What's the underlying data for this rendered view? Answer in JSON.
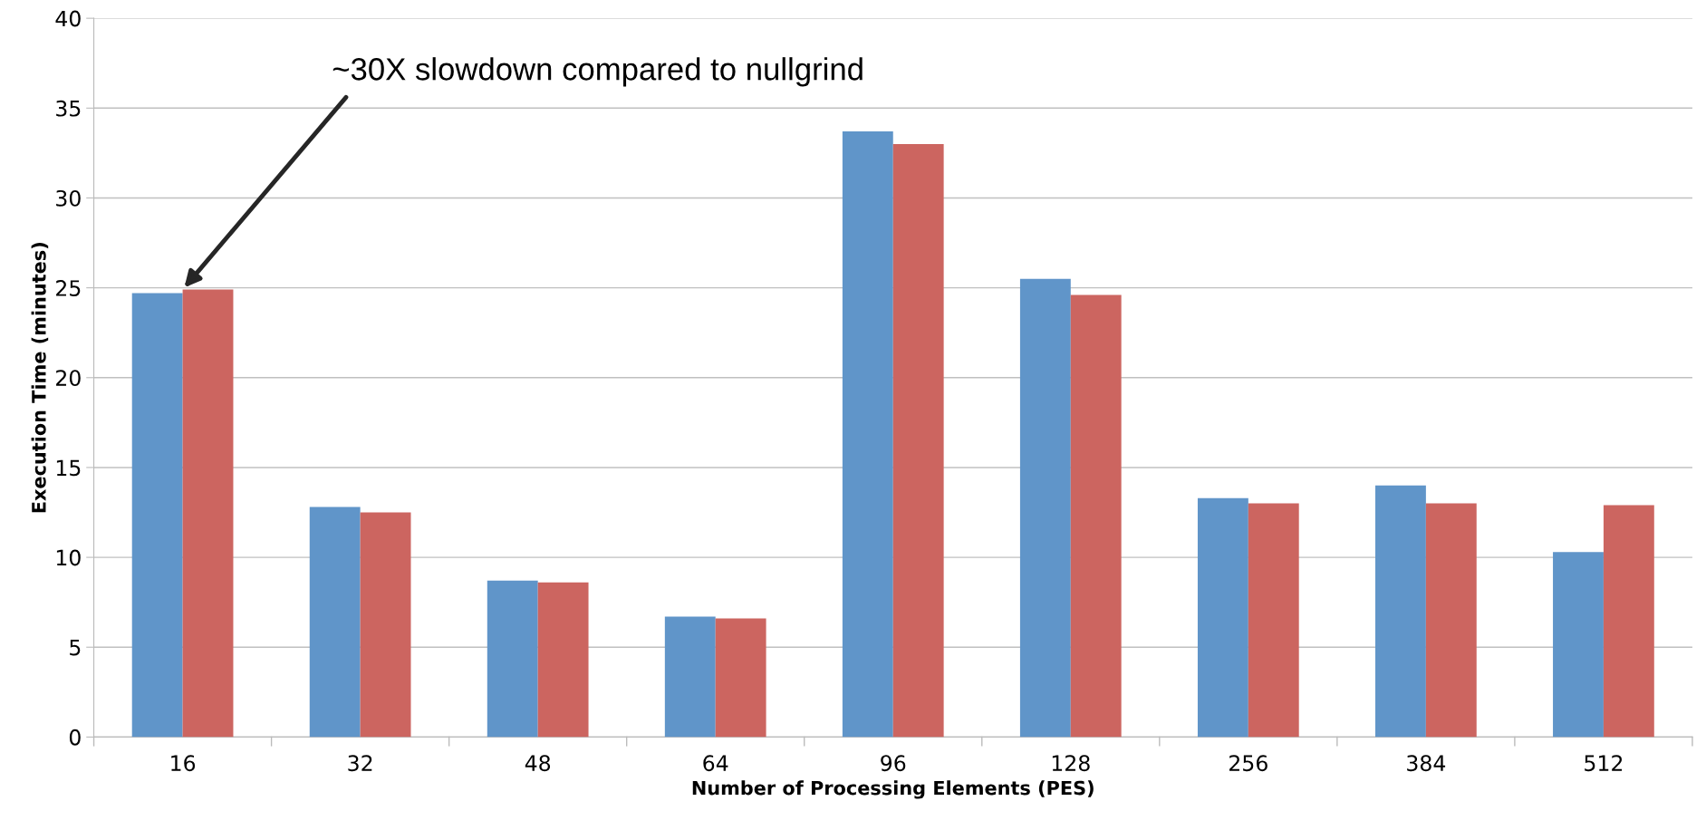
{
  "chart_data": {
    "type": "bar",
    "xlabel": "Number of Processing Elements (PES)",
    "ylabel": "Execution Time (minutes)",
    "categories": [
      "16",
      "32",
      "48",
      "64",
      "96",
      "128",
      "256",
      "384",
      "512"
    ],
    "series": [
      {
        "color": "#6095c9",
        "values": [
          24.7,
          12.8,
          8.7,
          6.7,
          33.7,
          25.5,
          13.3,
          14.0,
          10.3
        ]
      },
      {
        "color": "#cc6560",
        "values": [
          24.9,
          12.5,
          8.6,
          6.6,
          33.0,
          24.6,
          13.0,
          13.0,
          12.9
        ]
      }
    ],
    "ylim": [
      0,
      40
    ],
    "yticks": [
      0,
      5,
      10,
      15,
      20,
      25,
      30,
      35,
      40
    ],
    "grid": "y",
    "annotations": [
      "~30X slowdown compared to nullgrind"
    ]
  }
}
